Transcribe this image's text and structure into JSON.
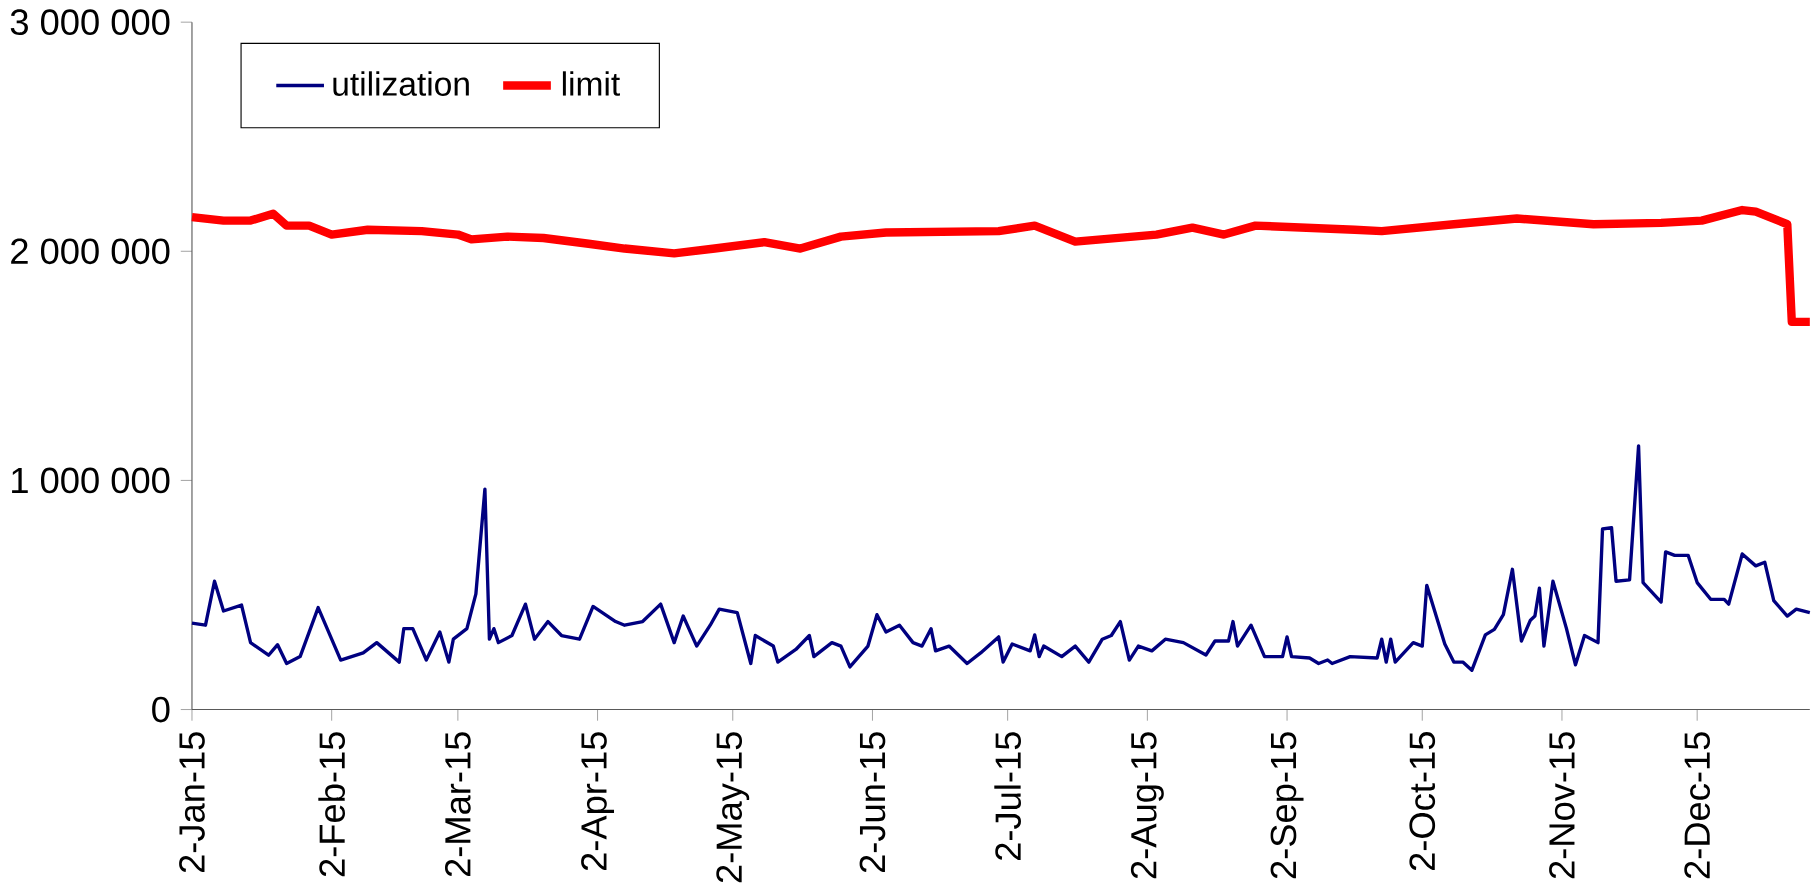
{
  "chart_data": {
    "type": "line",
    "legend": "top left",
    "grid": false,
    "marker": "none",
    "xlim": [
      "2015-01-02",
      "2015-12-27"
    ],
    "xticks": [
      {
        "value": "2015-01-02",
        "label": "2-Jan-15"
      },
      {
        "value": "2015-02-02",
        "label": "2-Feb-15"
      },
      {
        "value": "2015-03-02",
        "label": "2-Mar-15"
      },
      {
        "value": "2015-04-02",
        "label": "2-Apr-15"
      },
      {
        "value": "2015-05-02",
        "label": "2-May-15"
      },
      {
        "value": "2015-06-02",
        "label": "2-Jun-15"
      },
      {
        "value": "2015-07-02",
        "label": "2-Jul-15"
      },
      {
        "value": "2015-08-02",
        "label": "2-Aug-15"
      },
      {
        "value": "2015-09-02",
        "label": "2-Sep-15"
      },
      {
        "value": "2015-10-02",
        "label": "2-Oct-15"
      },
      {
        "value": "2015-11-02",
        "label": "2-Nov-15"
      },
      {
        "value": "2015-12-02",
        "label": "2-Dec-15"
      }
    ],
    "ylim": [
      0,
      3000000
    ],
    "yticks": [
      0,
      {
        "value": 1000000,
        "label": "1 000 000"
      },
      {
        "value": 2000000,
        "label": "2 000 000"
      },
      {
        "value": 3000000,
        "label": "3 000 000"
      }
    ],
    "series": [
      {
        "name": "utilization",
        "color": "#000080",
        "line_style": "solid",
        "x": [
          "2015-01-02",
          "2015-01-05",
          "2015-01-07",
          "2015-01-09",
          "2015-01-13",
          "2015-01-15",
          "2015-01-19",
          "2015-01-21",
          "2015-01-23",
          "2015-01-26",
          "2015-01-30",
          "2015-02-04",
          "2015-02-09",
          "2015-02-12",
          "2015-02-17",
          "2015-02-18",
          "2015-02-20",
          "2015-02-23",
          "2015-02-26",
          "2015-02-28",
          "2015-03-01",
          "2015-03-04",
          "2015-03-06",
          "2015-03-08",
          "2015-03-09",
          "2015-03-10",
          "2015-03-11",
          "2015-03-14",
          "2015-03-17",
          "2015-03-19",
          "2015-03-22",
          "2015-03-25",
          "2015-03-29",
          "2015-04-01",
          "2015-04-06",
          "2015-04-08",
          "2015-04-12",
          "2015-04-16",
          "2015-04-19",
          "2015-04-21",
          "2015-04-24",
          "2015-04-27",
          "2015-04-29",
          "2015-05-03",
          "2015-05-06",
          "2015-05-07",
          "2015-05-11",
          "2015-05-12",
          "2015-05-16",
          "2015-05-19",
          "2015-05-20",
          "2015-05-24",
          "2015-05-26",
          "2015-05-28",
          "2015-06-01",
          "2015-06-03",
          "2015-06-05",
          "2015-06-08",
          "2015-06-11",
          "2015-06-13",
          "2015-06-15",
          "2015-06-16",
          "2015-06-19",
          "2015-06-23",
          "2015-06-26",
          "2015-06-30",
          "2015-07-01",
          "2015-07-03",
          "2015-07-07",
          "2015-07-08",
          "2015-07-09",
          "2015-07-10",
          "2015-07-14",
          "2015-07-17",
          "2015-07-20",
          "2015-07-23",
          "2015-07-25",
          "2015-07-27",
          "2015-07-29",
          "2015-07-31",
          "2015-08-03",
          "2015-08-06",
          "2015-08-10",
          "2015-08-15",
          "2015-08-17",
          "2015-08-20",
          "2015-08-21",
          "2015-08-22",
          "2015-08-25",
          "2015-08-28",
          "2015-09-01",
          "2015-09-02",
          "2015-09-03",
          "2015-09-07",
          "2015-09-09",
          "2015-09-11",
          "2015-09-12",
          "2015-09-16",
          "2015-09-22",
          "2015-09-23",
          "2015-09-24",
          "2015-09-25",
          "2015-09-26",
          "2015-09-30",
          "2015-10-02",
          "2015-10-03",
          "2015-10-07",
          "2015-10-09",
          "2015-10-11",
          "2015-10-13",
          "2015-10-16",
          "2015-10-18",
          "2015-10-20",
          "2015-10-22",
          "2015-10-24",
          "2015-10-26",
          "2015-10-27",
          "2015-10-28",
          "2015-10-29",
          "2015-10-31",
          "2015-11-03",
          "2015-11-05",
          "2015-11-07",
          "2015-11-10",
          "2015-11-11",
          "2015-11-13",
          "2015-11-14",
          "2015-11-17",
          "2015-11-19",
          "2015-11-20",
          "2015-11-24",
          "2015-11-25",
          "2015-11-27",
          "2015-11-30",
          "2015-12-02",
          "2015-12-05",
          "2015-12-08",
          "2015-12-09",
          "2015-12-12",
          "2015-12-15",
          "2015-12-17",
          "2015-12-19",
          "2015-12-22",
          "2015-12-24",
          "2015-12-27"
        ],
        "values": [
          377000,
          368000,
          560000,
          430000,
          456000,
          292000,
          237000,
          283000,
          201000,
          231000,
          445000,
          216000,
          247000,
          292000,
          207000,
          353000,
          353000,
          216000,
          338000,
          207000,
          307000,
          353000,
          505000,
          962000,
          307000,
          353000,
          292000,
          323000,
          460000,
          307000,
          384000,
          323000,
          307000,
          450000,
          384000,
          368000,
          384000,
          460000,
          292000,
          408000,
          277000,
          368000,
          438000,
          423000,
          201000,
          323000,
          277000,
          207000,
          262000,
          323000,
          231000,
          292000,
          277000,
          186000,
          277000,
          414000,
          338000,
          368000,
          292000,
          277000,
          353000,
          256000,
          277000,
          201000,
          247000,
          317000,
          207000,
          286000,
          256000,
          326000,
          231000,
          277000,
          231000,
          277000,
          207000,
          307000,
          323000,
          384000,
          216000,
          277000,
          256000,
          307000,
          292000,
          238000,
          299000,
          299000,
          384000,
          277000,
          368000,
          231000,
          231000,
          317000,
          231000,
          225000,
          201000,
          216000,
          201000,
          231000,
          225000,
          307000,
          207000,
          307000,
          207000,
          292000,
          277000,
          542000,
          286000,
          207000,
          207000,
          171000,
          326000,
          350000,
          414000,
          612000,
          299000,
          390000,
          408000,
          530000,
          277000,
          560000,
          353000,
          195000,
          323000,
          292000,
          788000,
          794000,
          560000,
          566000,
          1151000,
          554000,
          469000,
          688000,
          673000,
          673000,
          554000,
          481000,
          481000,
          460000,
          679000,
          627000,
          643000,
          475000,
          408000,
          438000,
          423000
        ]
      },
      {
        "name": "limit",
        "color": "#ff0000",
        "line_style": "solid",
        "x": [
          "2015-01-02",
          "2015-01-09",
          "2015-01-15",
          "2015-01-20",
          "2015-01-23",
          "2015-01-28",
          "2015-02-02",
          "2015-02-10",
          "2015-02-22",
          "2015-03-02",
          "2015-03-05",
          "2015-03-13",
          "2015-03-21",
          "2015-03-31",
          "2015-04-08",
          "2015-04-19",
          "2015-04-28",
          "2015-05-09",
          "2015-05-17",
          "2015-05-26",
          "2015-06-05",
          "2015-06-30",
          "2015-07-08",
          "2015-07-17",
          "2015-08-04",
          "2015-08-12",
          "2015-08-19",
          "2015-08-26",
          "2015-09-17",
          "2015-09-23",
          "2015-10-09",
          "2015-10-23",
          "2015-11-09",
          "2015-11-24",
          "2015-12-03",
          "2015-12-12",
          "2015-12-15",
          "2015-12-22",
          "2015-12-23",
          "2015-12-27"
        ],
        "values": [
          2149000,
          2134000,
          2134000,
          2164000,
          2112000,
          2112000,
          2073000,
          2094000,
          2088000,
          2073000,
          2052000,
          2064000,
          2058000,
          2033000,
          2012000,
          1991000,
          2012000,
          2040000,
          2012000,
          2064000,
          2082000,
          2088000,
          2112000,
          2042000,
          2073000,
          2103000,
          2073000,
          2112000,
          2094000,
          2088000,
          2118000,
          2143000,
          2118000,
          2124000,
          2134000,
          2180000,
          2173000,
          2118000,
          1692000,
          1692000
        ]
      }
    ]
  }
}
